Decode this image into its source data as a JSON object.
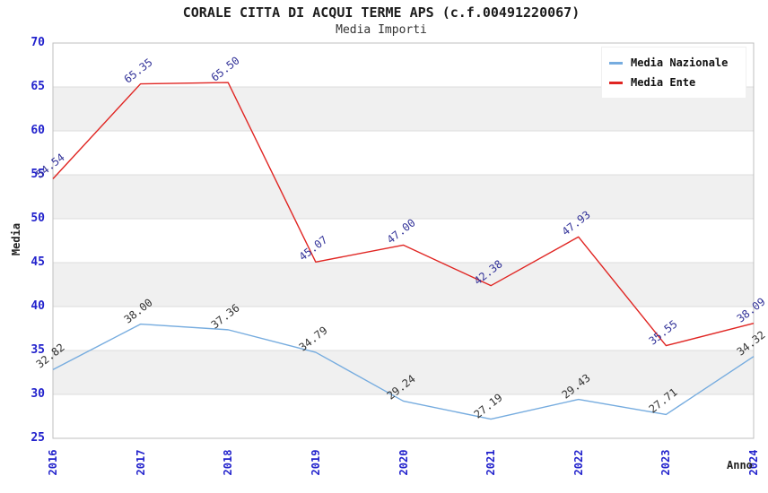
{
  "header": {
    "title": "CORALE CITTA DI ACQUI TERME APS (c.f.00491220067)",
    "subtitle": "Media Importi"
  },
  "chart_data": {
    "type": "line",
    "x": [
      "2016",
      "2017",
      "2018",
      "2019",
      "2020",
      "2021",
      "2022",
      "2023",
      "2024"
    ],
    "series": [
      {
        "name": "Media Nazionale",
        "color": "#76acdf",
        "label_color": "#333333",
        "values": [
          32.82,
          38.0,
          37.36,
          34.79,
          29.24,
          27.19,
          29.43,
          27.71,
          34.32
        ],
        "labels": [
          "32.82",
          "38.00",
          "37.36",
          "34.79",
          "29.24",
          "27.19",
          "29.43",
          "27.71",
          "34.32"
        ]
      },
      {
        "name": "Media Ente",
        "color": "#e02522",
        "label_color": "#333399",
        "values": [
          54.54,
          65.35,
          65.5,
          45.07,
          47.0,
          42.38,
          47.93,
          35.55,
          38.09
        ],
        "labels": [
          "54.54",
          "65.35",
          "65.50",
          "45.07",
          "47.00",
          "42.38",
          "47.93",
          "35.55",
          "38.09"
        ]
      }
    ],
    "title": "CORALE CITTA DI ACQUI TERME APS (c.f.00491220067)",
    "subtitle": "Media Importi",
    "xlabel": "Anno",
    "ylabel": "Media",
    "ylim": [
      25,
      70
    ],
    "yticks": [
      25,
      30,
      35,
      40,
      45,
      50,
      55,
      60,
      65,
      70
    ],
    "grid": "horizontal gridlines with alternating gray bands",
    "band_rows_gray": [
      [
        60,
        65
      ],
      [
        50,
        55
      ],
      [
        40,
        45
      ],
      [
        30,
        35
      ]
    ],
    "legend_position": "top-right",
    "legend_entries": [
      "Media Nazionale",
      "Media Ente"
    ]
  },
  "colors": {
    "tick_label": "#2222cc",
    "band_fill": "#f0f0f0",
    "gridline": "#dcdcdc",
    "plot_border": "#bfbfbf",
    "background": "#ffffff",
    "national_line": "#76acdf",
    "entity_line": "#e02522",
    "national_point_label": "#333333",
    "entity_point_label": "#333399"
  }
}
